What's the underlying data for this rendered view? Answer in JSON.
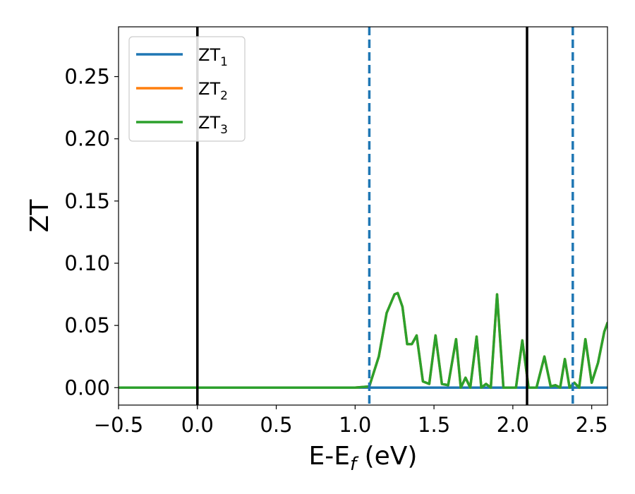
{
  "chart_data": {
    "type": "line",
    "title": "",
    "xlabel": "E-E",
    "xlabel_sub": "f",
    "xlabel_unit": " (eV)",
    "ylabel": "ZT",
    "xlim": [
      -0.5,
      2.6
    ],
    "ylim": [
      -0.014,
      0.29
    ],
    "xticks": [
      -0.5,
      0.0,
      0.5,
      1.0,
      1.5,
      2.0,
      2.5
    ],
    "xtick_labels": [
      "−0.5",
      "0.0",
      "0.5",
      "1.0",
      "1.5",
      "2.0",
      "2.5"
    ],
    "yticks": [
      0.0,
      0.05,
      0.1,
      0.15,
      0.2,
      0.25
    ],
    "ytick_labels": [
      "0.00",
      "0.05",
      "0.10",
      "0.15",
      "0.20",
      "0.25"
    ],
    "grid": false,
    "legend_position": "top-left",
    "series": [
      {
        "name": "ZT",
        "name_sub": "1",
        "color": "#1f77b4",
        "x": [
          -0.5,
          2.6
        ],
        "y": [
          0.0,
          0.0
        ]
      },
      {
        "name": "ZT",
        "name_sub": "2",
        "color": "#ff7f0e",
        "x": [
          -0.5,
          1.0,
          1.09,
          1.15,
          1.2,
          1.25,
          1.27,
          1.3,
          1.33,
          1.36,
          1.39,
          1.43,
          1.47,
          1.51,
          1.55,
          1.59,
          1.64,
          1.67,
          1.7,
          1.73,
          1.77,
          1.8,
          1.83,
          1.86,
          1.9,
          1.94,
          1.98,
          2.02,
          2.06,
          2.1,
          2.15,
          2.2,
          2.24,
          2.27,
          2.3,
          2.33,
          2.36,
          2.39,
          2.42,
          2.46,
          2.5,
          2.54,
          2.58,
          2.6
        ],
        "y": [
          0.0,
          0.0,
          0.001,
          0.025,
          0.06,
          0.075,
          0.076,
          0.065,
          0.035,
          0.035,
          0.042,
          0.005,
          0.003,
          0.042,
          0.003,
          0.002,
          0.039,
          0.0,
          0.008,
          0.0,
          0.041,
          0.0,
          0.003,
          0.0,
          0.075,
          0.0,
          0.0,
          0.0,
          0.038,
          0.0,
          0.0,
          0.025,
          0.001,
          0.002,
          0.0,
          0.023,
          0.0,
          0.004,
          0.0,
          0.039,
          0.004,
          0.02,
          0.045,
          0.052
        ]
      },
      {
        "name": "ZT",
        "name_sub": "3",
        "color": "#2ca02c",
        "x": [
          -0.5,
          1.0,
          1.09,
          1.15,
          1.2,
          1.25,
          1.27,
          1.3,
          1.33,
          1.36,
          1.39,
          1.43,
          1.47,
          1.51,
          1.55,
          1.59,
          1.64,
          1.67,
          1.7,
          1.73,
          1.77,
          1.8,
          1.83,
          1.86,
          1.9,
          1.94,
          1.98,
          2.02,
          2.06,
          2.1,
          2.15,
          2.2,
          2.24,
          2.27,
          2.3,
          2.33,
          2.36,
          2.39,
          2.42,
          2.46,
          2.5,
          2.54,
          2.58,
          2.6
        ],
        "y": [
          0.0,
          0.0,
          0.001,
          0.025,
          0.06,
          0.075,
          0.076,
          0.065,
          0.035,
          0.035,
          0.042,
          0.005,
          0.003,
          0.042,
          0.003,
          0.002,
          0.039,
          0.0,
          0.008,
          0.0,
          0.041,
          0.0,
          0.003,
          0.0,
          0.075,
          0.0,
          0.0,
          0.0,
          0.038,
          0.0,
          0.0,
          0.025,
          0.001,
          0.002,
          0.0,
          0.023,
          0.0,
          0.004,
          0.0,
          0.039,
          0.004,
          0.02,
          0.045,
          0.052
        ]
      }
    ],
    "vlines": [
      {
        "x": 0.0,
        "style": "solid",
        "color": "#000000"
      },
      {
        "x": 1.09,
        "style": "dashed",
        "color": "#1f77b4"
      },
      {
        "x": 2.09,
        "style": "solid",
        "color": "#000000"
      },
      {
        "x": 2.38,
        "style": "dashed",
        "color": "#1f77b4"
      }
    ]
  }
}
